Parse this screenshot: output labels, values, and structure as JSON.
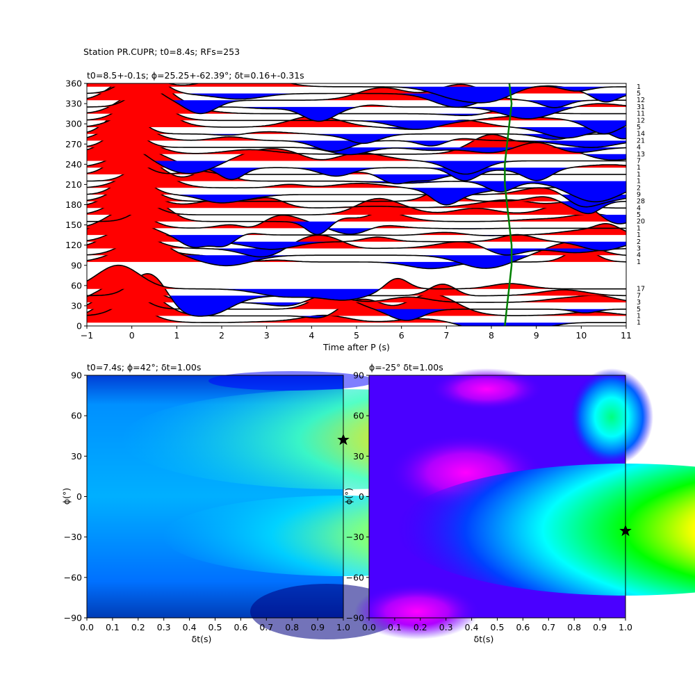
{
  "figure_title": "Station PR.CUPR; t0=8.4s; RFs=253",
  "chart_data": [
    {
      "type": "line",
      "title": "t0=8.5+-0.1s; ϕ=25.25+-62.39°; δt=0.16+-0.31s",
      "xlabel": "Time after P (s)",
      "ylabel": "",
      "xlim": [
        -1,
        11
      ],
      "ylim": [
        0,
        360
      ],
      "xticks": [
        -1,
        0,
        1,
        2,
        3,
        4,
        5,
        6,
        7,
        8,
        9,
        10,
        11
      ],
      "yticks": [
        0,
        30,
        60,
        90,
        120,
        150,
        180,
        210,
        240,
        270,
        300,
        330,
        360
      ],
      "back_azimuth_bins": [
        0,
        10,
        20,
        30,
        40,
        50,
        90,
        100,
        110,
        120,
        130,
        140,
        150,
        160,
        170,
        180,
        190,
        200,
        210,
        220,
        230,
        240,
        250,
        260,
        270,
        280,
        290,
        300,
        310,
        320,
        330,
        340,
        350
      ],
      "counts": [
        "1",
        "1",
        "5",
        "3",
        "7",
        "17",
        "1",
        "4",
        "3",
        "2",
        "1",
        "1",
        "20",
        "5",
        "4",
        "28",
        "9",
        "2",
        "1",
        "1",
        "1",
        "7",
        "13",
        "4",
        "21",
        "14",
        "5",
        "12",
        "11",
        "31",
        "12",
        "5",
        "1"
      ],
      "moveout_curve": {
        "color": "#008000",
        "t": [
          8.3,
          8.35,
          8.4,
          8.45,
          8.45,
          8.4,
          8.35,
          8.3,
          8.3,
          8.35,
          8.4,
          8.45,
          8.4
        ],
        "baz": [
          0,
          30,
          60,
          90,
          120,
          150,
          180,
          210,
          240,
          270,
          300,
          330,
          360
        ]
      },
      "positive_fill": "#ff0000",
      "negative_fill": "#0000ff",
      "trace_color": "#000000"
    },
    {
      "type": "heatmap",
      "title": "t0=7.4s; ϕ=42°; δt=1.00s",
      "xlabel": "δt(s)",
      "ylabel": "ϕ(°)",
      "xlim": [
        0.0,
        1.0
      ],
      "ylim": [
        -90,
        90
      ],
      "xticks": [
        "0.0",
        "0.1",
        "0.2",
        "0.3",
        "0.4",
        "0.5",
        "0.6",
        "0.7",
        "0.8",
        "0.9",
        "1.0"
      ],
      "yticks": [
        -90,
        -60,
        -30,
        0,
        30,
        60,
        90
      ],
      "colormap": "jet",
      "best": {
        "dt": 1.0,
        "phi": 42
      }
    },
    {
      "type": "heatmap",
      "title": "ϕ=-25° δt=1.00s",
      "xlabel": "δt(s)",
      "ylabel": "ϕ(°)",
      "xlim": [
        0.0,
        1.0
      ],
      "ylim": [
        -90,
        90
      ],
      "xticks": [
        "0.0",
        "0.1",
        "0.2",
        "0.3",
        "0.4",
        "0.5",
        "0.6",
        "0.7",
        "0.8",
        "0.9",
        "1.0"
      ],
      "yticks": [
        -90,
        -60,
        -30,
        0,
        30,
        60,
        90
      ],
      "colormap": "gist_rainbow",
      "best": {
        "dt": 1.0,
        "phi": -25
      }
    }
  ]
}
